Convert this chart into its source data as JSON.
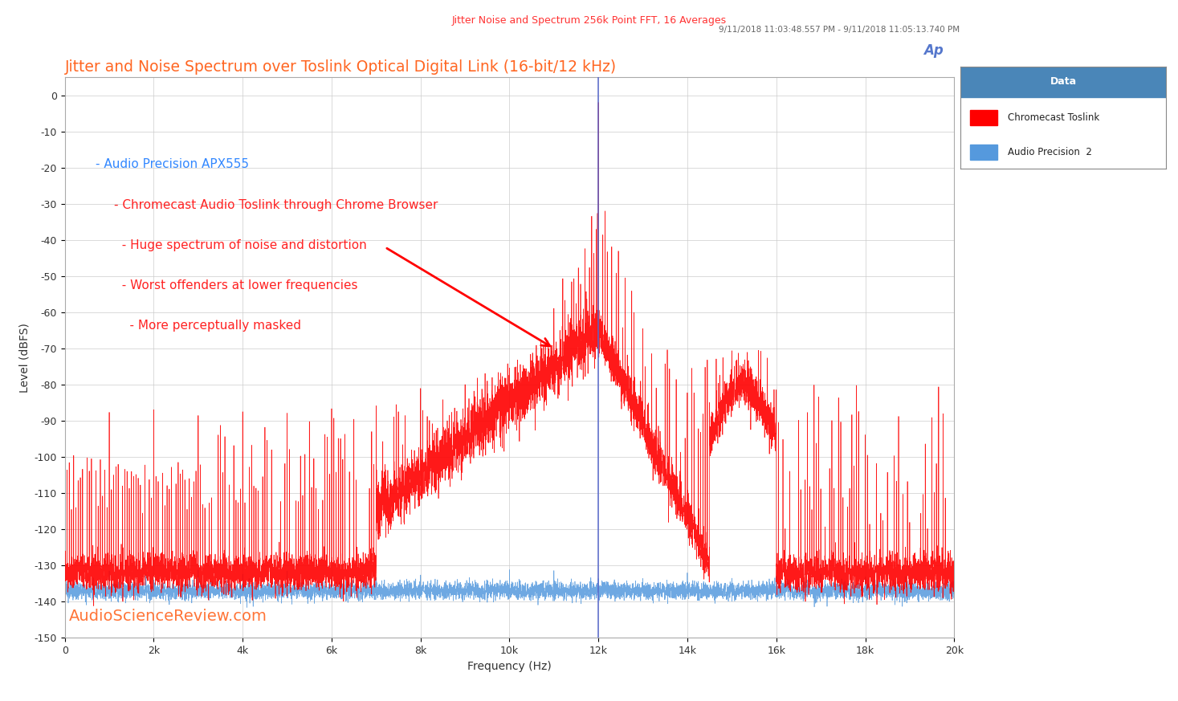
{
  "title_top": "Jitter Noise and Spectrum 256k Point FFT, 16 Averages",
  "title_top_color": "#ff3333",
  "datetime_str": "9/11/2018 11:03:48.557 PM - 9/11/2018 11:05:13.740 PM",
  "datetime_color": "#666666",
  "main_title": "Jitter and Noise Spectrum over Toslink Optical Digital Link (16-bit/12 kHz)",
  "main_title_color": "#ff6622",
  "ylabel": "Level (dBFS)",
  "xlabel": "Frequency (Hz)",
  "ylim": [
    -150,
    5
  ],
  "xlim": [
    0,
    20000
  ],
  "yticks": [
    0,
    -10,
    -20,
    -30,
    -40,
    -50,
    -60,
    -70,
    -80,
    -90,
    -100,
    -110,
    -120,
    -130,
    -140,
    -150
  ],
  "xtick_labels": [
    "0",
    "2k",
    "4k",
    "6k",
    "8k",
    "10k",
    "12k",
    "14k",
    "16k",
    "18k",
    "20k"
  ],
  "xtick_positions": [
    0,
    2000,
    4000,
    6000,
    8000,
    10000,
    12000,
    14000,
    16000,
    18000,
    20000
  ],
  "background_color": "#ffffff",
  "plot_bg_color": "#ffffff",
  "grid_color": "#cccccc",
  "signal_freq": 12000,
  "vline_color": "#5566cc",
  "legend_title": "Data",
  "legend_title_bg": "#4a86b8",
  "legend_entries": [
    "Chromecast Toslink",
    "Audio Precision  2"
  ],
  "legend_colors": [
    "#ff0000",
    "#5599dd"
  ],
  "annotation_line1": "- Audio Precision APX555",
  "annotation_line1_color": "#3388ff",
  "annotation_lines_red": [
    "- Chromecast Audio Toslink through Chrome Browser",
    "  - Huge spectrum of noise and distortion",
    "  - Worst offenders at lower frequencies",
    "    - More perceptually masked"
  ],
  "annotation_red_color": "#ff2222",
  "watermark": "AudioScienceReview.com",
  "watermark_color": "#ff6622",
  "ap_logo_color": "#5577cc"
}
